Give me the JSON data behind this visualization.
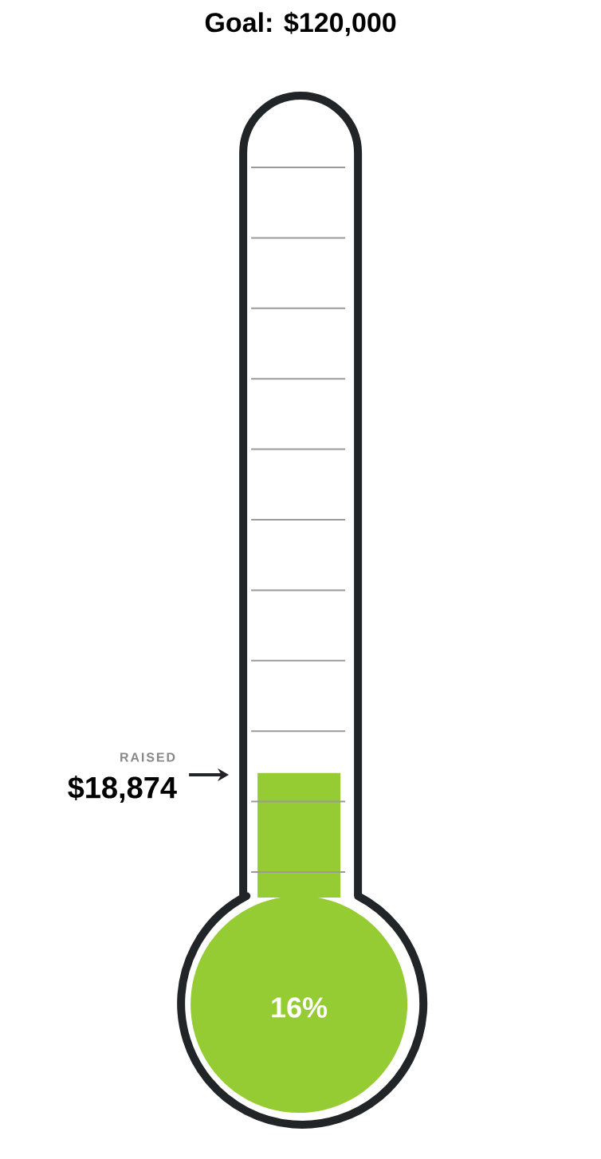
{
  "chart_data": {
    "type": "other",
    "title": "Goal: $120,000",
    "categories": [
      null
    ],
    "values": [
      16
    ],
    "value_labels": [
      "16%"
    ],
    "color": "#96cc33",
    "annotations": [
      "RAISED",
      "$18,874"
    ]
  }
}
